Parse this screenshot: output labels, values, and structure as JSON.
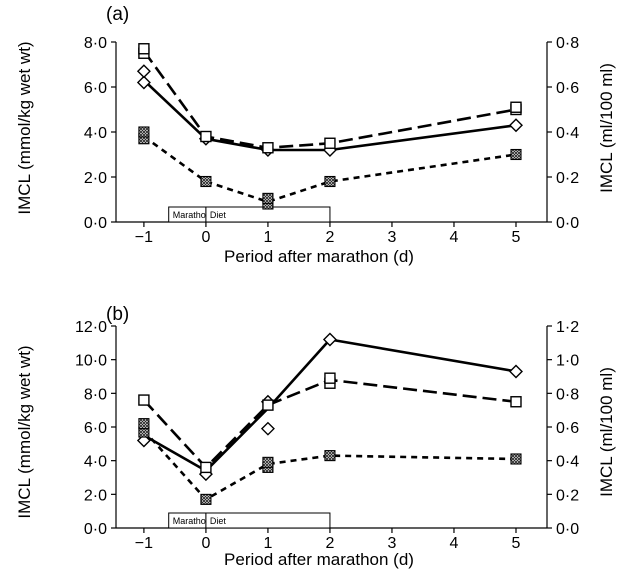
{
  "chart_data": [
    {
      "type": "line",
      "panel_label": "(a)",
      "xlabel": "Period after marathon (d)",
      "ylabel_left": "IMCL (mmol/kg wet wt)",
      "ylabel_right": "IMCL (ml/100 ml)",
      "x": [
        -1,
        0,
        1,
        2,
        5
      ],
      "xticks": [
        -1,
        0,
        1,
        2,
        3,
        4,
        5
      ],
      "xtick_labels": [
        "−1",
        "0",
        "1",
        "2",
        "3",
        "4",
        "5"
      ],
      "xlim": [
        -1.45,
        5.5
      ],
      "ylim_left": [
        0,
        8
      ],
      "yticks_left": [
        0,
        2,
        4,
        6,
        8
      ],
      "ytick_labels_left": [
        "0·0",
        "2·0",
        "4·0",
        "6·0",
        "8·0"
      ],
      "ylim_right": [
        0,
        0.8
      ],
      "yticks_right": [
        0,
        0.2,
        0.4,
        0.6,
        0.8
      ],
      "ytick_labels_right": [
        "0·0",
        "0·2",
        "0·4",
        "0·6",
        "0·8"
      ],
      "timeline_boxes": [
        {
          "label": "Marathon",
          "start": -0.6,
          "end": 0
        },
        {
          "label": "Diet",
          "start": 0,
          "end": 2
        }
      ],
      "series": [
        {
          "style": "solid",
          "values": [
            6.3,
            3.7,
            3.2,
            3.2,
            4.3
          ],
          "markers": [
            {
              "x": -1,
              "y": 6.2,
              "shape": "diamond"
            },
            {
              "x": -1,
              "y": 6.7,
              "shape": "diamond"
            },
            {
              "x": 0,
              "y": 3.7,
              "shape": "diamond"
            },
            {
              "x": 1,
              "y": 3.2,
              "shape": "diamond"
            },
            {
              "x": 2,
              "y": 3.2,
              "shape": "diamond"
            },
            {
              "x": 5,
              "y": 4.3,
              "shape": "diamond"
            }
          ]
        },
        {
          "style": "long-dash",
          "values": [
            7.6,
            3.8,
            3.3,
            3.5,
            5.0
          ],
          "markers": [
            {
              "x": -1,
              "y": 7.5,
              "shape": "square"
            },
            {
              "x": -1,
              "y": 7.7,
              "shape": "square"
            },
            {
              "x": 0,
              "y": 3.8,
              "shape": "square"
            },
            {
              "x": 1,
              "y": 3.3,
              "shape": "square"
            },
            {
              "x": 2,
              "y": 3.5,
              "shape": "square"
            },
            {
              "x": 5,
              "y": 5.0,
              "shape": "square"
            },
            {
              "x": 5,
              "y": 5.1,
              "shape": "square"
            }
          ]
        },
        {
          "style": "short-dash",
          "values": [
            3.8,
            1.8,
            0.9,
            1.8,
            3.0
          ],
          "markers": [
            {
              "x": -1,
              "y": 3.7,
              "shape": "hatched"
            },
            {
              "x": -1,
              "y": 4.0,
              "shape": "hatched"
            },
            {
              "x": 0,
              "y": 1.8,
              "shape": "hatched"
            },
            {
              "x": 1,
              "y": 0.8,
              "shape": "hatched"
            },
            {
              "x": 1,
              "y": 1.05,
              "shape": "hatched"
            },
            {
              "x": 2,
              "y": 1.8,
              "shape": "hatched"
            },
            {
              "x": 5,
              "y": 3.0,
              "shape": "hatched"
            }
          ]
        }
      ]
    },
    {
      "type": "line",
      "panel_label": "(b)",
      "xlabel": "Period after marathon (d)",
      "ylabel_left": "IMCL (mmol/kg wet wt)",
      "ylabel_right": "IMCL (ml/100 ml)",
      "x": [
        -1,
        0,
        1,
        2,
        5
      ],
      "xticks": [
        -1,
        0,
        1,
        2,
        3,
        4,
        5
      ],
      "xtick_labels": [
        "−1",
        "0",
        "1",
        "2",
        "3",
        "4",
        "5"
      ],
      "xlim": [
        -1.45,
        5.5
      ],
      "ylim_left": [
        0,
        12
      ],
      "yticks_left": [
        0,
        2,
        4,
        6,
        8,
        10,
        12
      ],
      "ytick_labels_left": [
        "0·0",
        "2·0",
        "4·0",
        "6·0",
        "8·0",
        "10·0",
        "12·0"
      ],
      "ylim_right": [
        0,
        1.2
      ],
      "yticks_right": [
        0,
        0.2,
        0.4,
        0.6,
        0.8,
        1.0,
        1.2
      ],
      "ytick_labels_right": [
        "0·0",
        "0·2",
        "0·4",
        "0·6",
        "0·8",
        "1·0",
        "1·2"
      ],
      "timeline_boxes": [
        {
          "label": "Marathon",
          "start": -0.6,
          "end": 0
        },
        {
          "label": "Diet",
          "start": 0,
          "end": 2
        }
      ],
      "series": [
        {
          "style": "solid",
          "values": [
            5.5,
            3.4,
            7.1,
            11.2,
            9.3
          ],
          "markers": [
            {
              "x": -1,
              "y": 5.2,
              "shape": "diamond"
            },
            {
              "x": 0,
              "y": 3.2,
              "shape": "diamond"
            },
            {
              "x": 1,
              "y": 5.9,
              "shape": "diamond"
            },
            {
              "x": 1,
              "y": 7.5,
              "shape": "diamond"
            },
            {
              "x": 2,
              "y": 11.2,
              "shape": "diamond"
            },
            {
              "x": 5,
              "y": 9.3,
              "shape": "diamond"
            }
          ]
        },
        {
          "style": "long-dash",
          "values": [
            7.6,
            3.6,
            7.3,
            8.8,
            7.5
          ],
          "markers": [
            {
              "x": -1,
              "y": 7.6,
              "shape": "square"
            },
            {
              "x": 0,
              "y": 3.6,
              "shape": "square"
            },
            {
              "x": 1,
              "y": 7.3,
              "shape": "square"
            },
            {
              "x": 2,
              "y": 8.6,
              "shape": "square"
            },
            {
              "x": 2,
              "y": 8.9,
              "shape": "square"
            },
            {
              "x": 5,
              "y": 7.5,
              "shape": "square"
            }
          ]
        },
        {
          "style": "short-dash",
          "values": [
            5.8,
            1.7,
            3.8,
            4.3,
            4.1
          ],
          "markers": [
            {
              "x": -1,
              "y": 5.7,
              "shape": "hatched"
            },
            {
              "x": -1,
              "y": 6.2,
              "shape": "hatched"
            },
            {
              "x": 0,
              "y": 1.7,
              "shape": "hatched"
            },
            {
              "x": 1,
              "y": 3.6,
              "shape": "hatched"
            },
            {
              "x": 1,
              "y": 3.9,
              "shape": "hatched"
            },
            {
              "x": 2,
              "y": 4.3,
              "shape": "hatched"
            },
            {
              "x": 5,
              "y": 4.1,
              "shape": "hatched"
            }
          ]
        }
      ]
    }
  ]
}
